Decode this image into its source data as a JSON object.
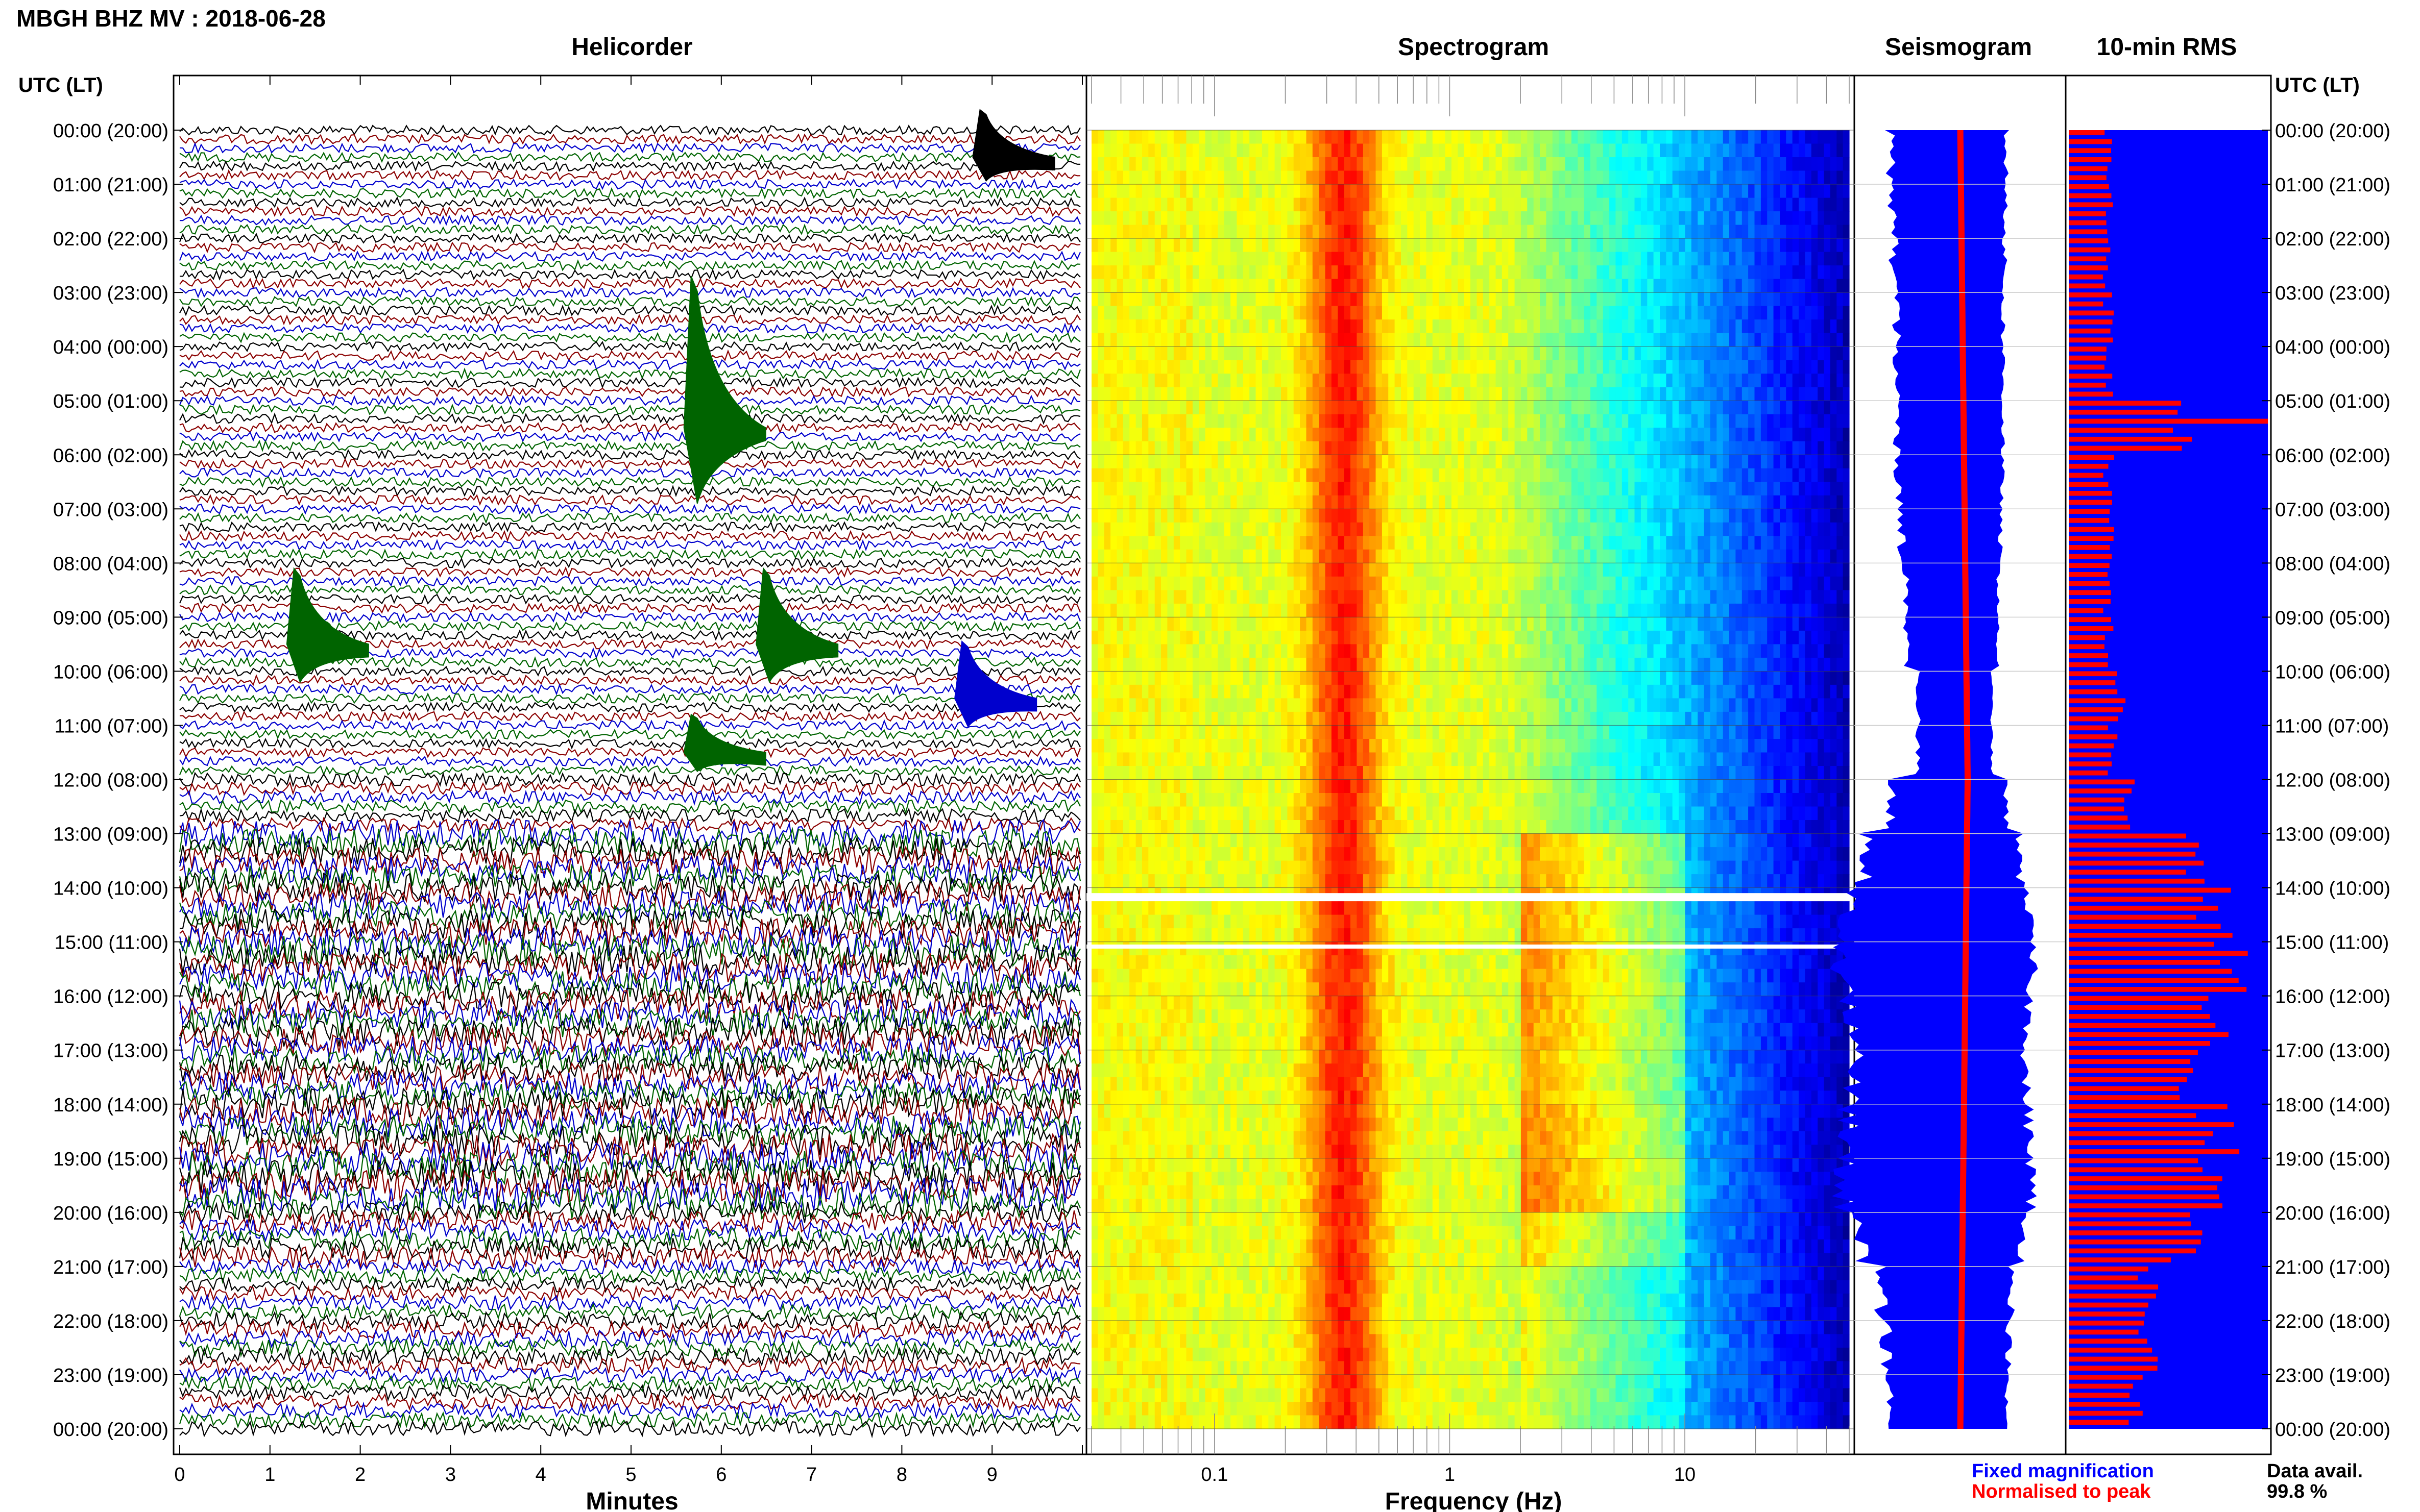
{
  "header": {
    "station_title": "MBGH BHZ MV : 2018-06-28"
  },
  "panels": {
    "helicorder": {
      "title": "Helicorder",
      "xlabel": "Minutes"
    },
    "spectrogram": {
      "title": "Spectrogram",
      "xlabel": "Frequency (Hz)"
    },
    "seismogram": {
      "title": "Seismogram"
    },
    "rms": {
      "title": "10-min RMS"
    }
  },
  "axis_headers": {
    "left": "UTC (LT)",
    "right": "UTC (LT)"
  },
  "legend": {
    "fixed": "Fixed magnification",
    "normalised": "Normalised to peak",
    "fixed_color": "#0000ff",
    "normalised_color": "#ff0000"
  },
  "data_avail": {
    "label": "Data avail.",
    "value": "99.8 %"
  },
  "colors": {
    "trace_cycle": [
      "#000000",
      "#8b0000",
      "#0000cd",
      "#006400"
    ],
    "seismogram_fixed": "#0000ff",
    "seismogram_norm": "#ff0000",
    "rms_bg": "#0000ff",
    "rms_bar": "#ff0000"
  },
  "chart_data": [
    {
      "type": "line",
      "panel": "helicorder",
      "x_ticks": [
        "0",
        "1",
        "2",
        "3",
        "4",
        "5",
        "6",
        "7",
        "8",
        "9"
      ],
      "xlim": [
        0,
        10
      ],
      "y_ticks_utc": [
        "00:00 (20:00)",
        "01:00 (21:00)",
        "02:00 (22:00)",
        "03:00 (23:00)",
        "04:00 (00:00)",
        "05:00 (01:00)",
        "06:00 (02:00)",
        "07:00 (03:00)",
        "08:00 (04:00)",
        "09:00 (05:00)",
        "10:00 (06:00)",
        "11:00 (07:00)",
        "12:00 (08:00)",
        "13:00 (09:00)",
        "14:00 (10:00)",
        "15:00 (11:00)",
        "16:00 (12:00)",
        "17:00 (13:00)",
        "18:00 (14:00)",
        "19:00 (15:00)",
        "20:00 (16:00)",
        "21:00 (17:00)",
        "22:00 (18:00)",
        "23:00 (19:00)",
        "00:00 (20:00)"
      ],
      "traces_per_hour": 6,
      "hours": 24,
      "row_noise_amplitude": [
        1,
        1,
        1,
        1,
        1,
        1,
        1,
        1,
        1,
        1,
        1,
        1,
        1.4,
        3,
        3.2,
        3.4,
        3.2,
        3,
        3.4,
        3.6,
        2.4,
        1.6,
        1.8,
        1.6
      ],
      "events": [
        {
          "hour": 0,
          "minute": 8.9,
          "amp": 2.5
        },
        {
          "hour": 5,
          "minute": 5.7,
          "amp": 8
        },
        {
          "hour": 9,
          "minute": 1.3,
          "amp": 4
        },
        {
          "hour": 9,
          "minute": 6.5,
          "amp": 4
        },
        {
          "hour": 10,
          "minute": 8.7,
          "amp": 3
        },
        {
          "hour": 11,
          "minute": 5.7,
          "amp": 2
        }
      ]
    },
    {
      "type": "heatmap",
      "panel": "spectrogram",
      "x_scale": "log",
      "xlim": [
        0.03,
        50
      ],
      "x_ticks": [
        "0.1",
        "1",
        "10"
      ],
      "y_hours": 24,
      "gaps_hours": [
        14.1,
        14.25,
        15.05,
        15.1
      ],
      "colormap": "jet"
    },
    {
      "type": "area",
      "panel": "seismogram",
      "series": [
        {
          "name": "Fixed magnification",
          "hourly_amplitude": [
            0.45,
            0.45,
            0.42,
            0.4,
            0.4,
            0.4,
            0.38,
            0.35,
            0.32,
            0.3,
            0.2,
            0.2,
            0.45,
            0.7,
            0.85,
            0.9,
            0.85,
            0.8,
            0.85,
            0.9,
            0.75,
            0.55,
            0.5,
            0.45
          ]
        },
        {
          "name": "Normalised to peak",
          "hourly_amplitude": [
            0.05,
            0.05,
            0.05,
            0.05,
            0.05,
            0.05,
            0.05,
            0.05,
            0.05,
            0.05,
            0.05,
            0.05,
            0.05,
            0.05,
            0.05,
            0.05,
            0.05,
            0.05,
            0.05,
            0.05,
            0.05,
            0.05,
            0.05,
            0.05
          ]
        }
      ]
    },
    {
      "type": "bar",
      "panel": "rms",
      "bins_per_hour": 6,
      "hourly_rms_fraction": [
        0.2,
        0.2,
        0.2,
        0.2,
        0.2,
        0.6,
        0.2,
        0.2,
        0.2,
        0.2,
        0.25,
        0.22,
        0.3,
        0.6,
        0.75,
        0.8,
        0.7,
        0.6,
        0.75,
        0.75,
        0.6,
        0.4,
        0.4,
        0.35
      ]
    }
  ]
}
